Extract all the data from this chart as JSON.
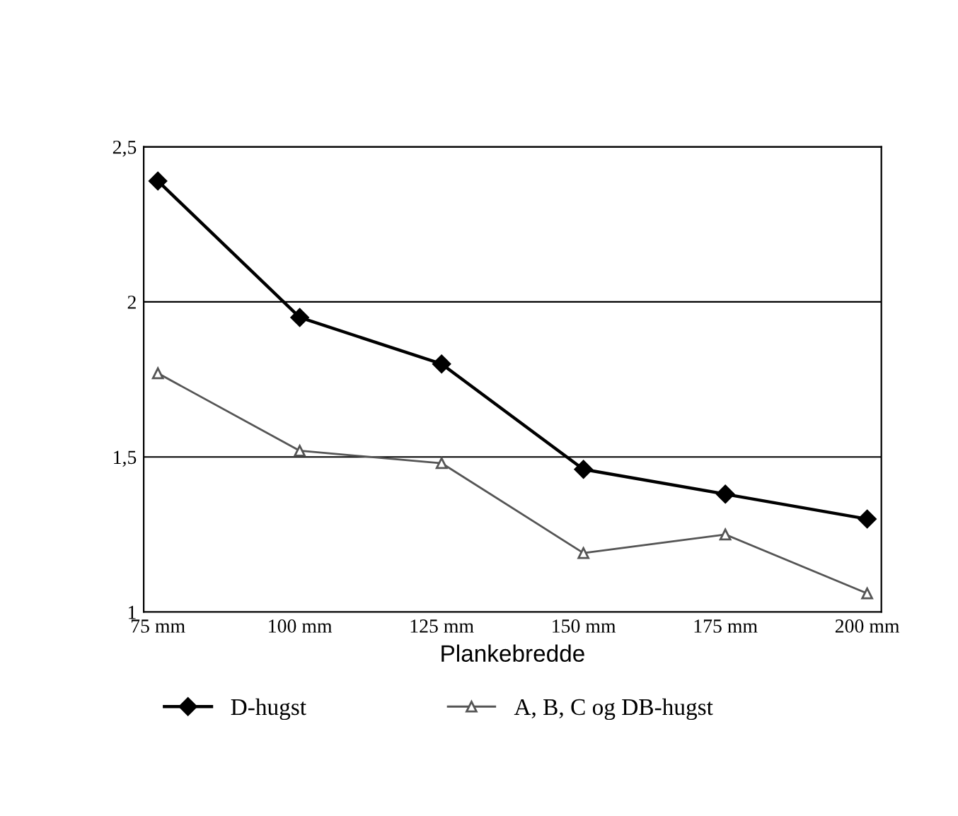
{
  "chart_data": {
    "type": "line",
    "xlabel": "Plankebredde",
    "categories": [
      "75 mm",
      "100 mm",
      "125 mm",
      "150 mm",
      "175 mm",
      "200 mm"
    ],
    "series": [
      {
        "name": "D-hugst",
        "color": "#000000",
        "marker": "diamond",
        "values": [
          2.39,
          1.95,
          1.8,
          1.46,
          1.38,
          1.3
        ]
      },
      {
        "name": "A, B, C og DB-hugst",
        "color": "#555555",
        "marker": "triangle",
        "values": [
          1.77,
          1.52,
          1.48,
          1.19,
          1.25,
          1.06
        ]
      }
    ],
    "ylim": [
      1,
      2.5
    ],
    "yticks": [
      {
        "value": 1,
        "label": "1"
      },
      {
        "value": 1.5,
        "label": "1,5"
      },
      {
        "value": 2,
        "label": "2"
      },
      {
        "value": 2.5,
        "label": "2,5"
      }
    ],
    "grid": "y",
    "legend": "bottom",
    "line_style": "solid"
  }
}
